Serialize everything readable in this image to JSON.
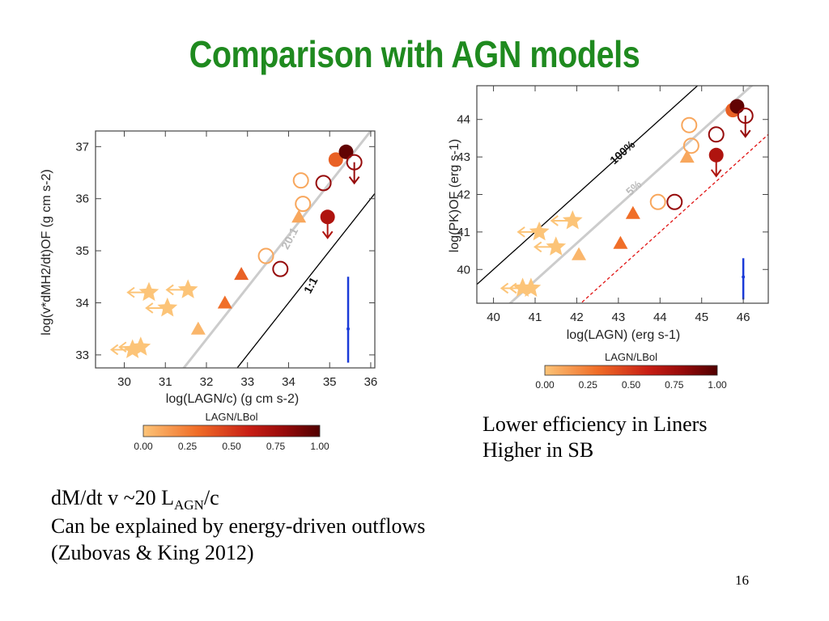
{
  "slide": {
    "title": "Comparison with AGN models",
    "page_number": "16",
    "note_right": [
      "Lower efficiency in Liners",
      "Higher in SB"
    ],
    "note_bottom": {
      "line1_prefix": "dM/dt v ~20 L",
      "line1_sub": "AGN",
      "line1_suffix": "/c",
      "line2": "Can be explained by energy-driven outflows",
      "line3": "(Zubovas & King 2012)"
    }
  },
  "chart_data": [
    {
      "type": "scatter",
      "xlabel": "log(LAGN/c) (g cm s-2)",
      "ylabel": "log(v*dMH2/dt)OF (g cm s-2)",
      "xlim": [
        29.3,
        36.1
      ],
      "ylim": [
        32.75,
        37.3
      ],
      "x_ticks": [
        "30",
        "31",
        "32",
        "33",
        "34",
        "35",
        "36"
      ],
      "y_ticks": [
        "33",
        "34",
        "35",
        "36",
        "37"
      ],
      "lines": [
        {
          "label": "1:1",
          "offset": 0,
          "color": "#000000"
        },
        {
          "label": "20:1",
          "offset": 1.3,
          "color": "#cccccc"
        }
      ],
      "colorbar": {
        "label": "LAGN/LBol",
        "ticks": [
          "0.00",
          "0.25",
          "0.50",
          "0.75",
          "1.00"
        ]
      },
      "points": [
        {
          "kind": "star",
          "x": 30.2,
          "y": 33.1,
          "frac": 0.0,
          "arrow": "left"
        },
        {
          "kind": "star",
          "x": 30.4,
          "y": 33.15,
          "frac": 0.0,
          "arrow": "left"
        },
        {
          "kind": "star",
          "x": 30.6,
          "y": 34.2,
          "frac": 0.0,
          "arrow": "left"
        },
        {
          "kind": "star",
          "x": 31.05,
          "y": 33.9,
          "frac": 0.0,
          "arrow": "left"
        },
        {
          "kind": "star",
          "x": 31.55,
          "y": 34.25,
          "frac": 0.0,
          "arrow": "left"
        },
        {
          "kind": "triangle",
          "x": 31.8,
          "y": 33.5,
          "frac": 0.05
        },
        {
          "kind": "triangle",
          "x": 32.45,
          "y": 34.0,
          "frac": 0.3
        },
        {
          "kind": "triangle",
          "x": 32.85,
          "y": 34.55,
          "frac": 0.35
        },
        {
          "kind": "circle-open",
          "x": 33.45,
          "y": 34.9,
          "frac": 0.1
        },
        {
          "kind": "circle-open",
          "x": 33.8,
          "y": 34.65,
          "frac": 0.8
        },
        {
          "kind": "triangle",
          "x": 34.25,
          "y": 35.65,
          "frac": 0.1
        },
        {
          "kind": "circle-open",
          "x": 34.3,
          "y": 36.35,
          "frac": 0.1
        },
        {
          "kind": "circle-open",
          "x": 34.35,
          "y": 35.9,
          "frac": 0.1
        },
        {
          "kind": "circle-open",
          "x": 34.85,
          "y": 36.3,
          "frac": 0.8
        },
        {
          "kind": "circle",
          "x": 34.95,
          "y": 35.65,
          "frac": 0.7,
          "arrow": "down"
        },
        {
          "kind": "circle",
          "x": 35.15,
          "y": 36.75,
          "frac": 0.35
        },
        {
          "kind": "circle",
          "x": 35.4,
          "y": 36.9,
          "frac": 0.95
        },
        {
          "kind": "circle-open",
          "x": 35.6,
          "y": 36.7,
          "frac": 0.8,
          "arrow": "down"
        }
      ],
      "errorbar": {
        "x": 35.45,
        "y": 33.5,
        "ylow": 32.85,
        "yhigh": 34.5
      }
    },
    {
      "type": "scatter",
      "xlabel": "log(LAGN) (erg s-1)",
      "ylabel": "log(PK)OF (erg s-1)",
      "xlim": [
        39.6,
        46.6
      ],
      "ylim": [
        39.1,
        44.9
      ],
      "x_ticks": [
        "40",
        "41",
        "42",
        "43",
        "44",
        "45",
        "46"
      ],
      "y_ticks": [
        "40",
        "41",
        "42",
        "43",
        "44"
      ],
      "lines": [
        {
          "label": "100%",
          "offset": 0,
          "color": "#000000"
        },
        {
          "label": "5%",
          "offset": -1.3,
          "color": "#cccccc"
        },
        {
          "label": "",
          "offset": -3.0,
          "color": "#e01010"
        }
      ],
      "colorbar": {
        "label": "LAGN/LBol",
        "ticks": [
          "0.00",
          "0.25",
          "0.50",
          "0.75",
          "1.00"
        ]
      },
      "points": [
        {
          "kind": "star",
          "x": 40.7,
          "y": 39.5,
          "frac": 0.0,
          "arrow": "left"
        },
        {
          "kind": "star",
          "x": 40.9,
          "y": 39.5,
          "frac": 0.0,
          "arrow": "left"
        },
        {
          "kind": "star",
          "x": 41.1,
          "y": 41.0,
          "frac": 0.0,
          "arrow": "left"
        },
        {
          "kind": "star",
          "x": 41.5,
          "y": 40.6,
          "frac": 0.0,
          "arrow": "left"
        },
        {
          "kind": "star",
          "x": 41.9,
          "y": 41.3,
          "frac": 0.0,
          "arrow": "left"
        },
        {
          "kind": "triangle",
          "x": 42.05,
          "y": 40.4,
          "frac": 0.05
        },
        {
          "kind": "triangle",
          "x": 43.05,
          "y": 40.7,
          "frac": 0.3
        },
        {
          "kind": "triangle",
          "x": 43.35,
          "y": 41.5,
          "frac": 0.3
        },
        {
          "kind": "circle-open",
          "x": 43.95,
          "y": 41.8,
          "frac": 0.1
        },
        {
          "kind": "circle-open",
          "x": 44.35,
          "y": 41.8,
          "frac": 0.8
        },
        {
          "kind": "triangle",
          "x": 44.65,
          "y": 43.0,
          "frac": 0.1
        },
        {
          "kind": "circle-open",
          "x": 44.7,
          "y": 43.85,
          "frac": 0.1
        },
        {
          "kind": "circle-open",
          "x": 44.75,
          "y": 43.3,
          "frac": 0.1
        },
        {
          "kind": "circle-open",
          "x": 45.35,
          "y": 43.6,
          "frac": 0.8
        },
        {
          "kind": "circle",
          "x": 45.35,
          "y": 43.05,
          "frac": 0.7,
          "arrow": "down"
        },
        {
          "kind": "circle",
          "x": 45.75,
          "y": 44.25,
          "frac": 0.35
        },
        {
          "kind": "circle",
          "x": 45.85,
          "y": 44.35,
          "frac": 0.95
        },
        {
          "kind": "circle-open",
          "x": 46.05,
          "y": 44.1,
          "frac": 0.8,
          "arrow": "down"
        }
      ],
      "errorbar": {
        "x": 46.0,
        "y": 39.8,
        "ylow": 39.2,
        "yhigh": 40.3
      }
    }
  ]
}
